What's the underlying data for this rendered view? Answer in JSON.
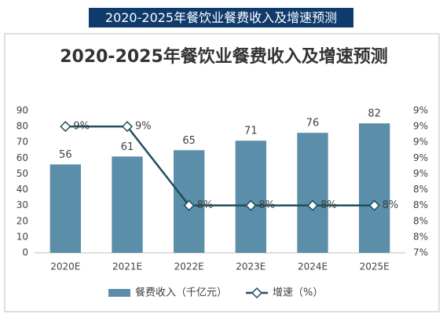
{
  "header": {
    "title": "2020-2025年餐饮业餐费收入及增速预测"
  },
  "chart_data": {
    "type": "bar-line",
    "title": "2020-2025年餐饮业餐费收入及增速预测",
    "categories": [
      "2020E",
      "2021E",
      "2022E",
      "2023E",
      "2024E",
      "2025E"
    ],
    "series": [
      {
        "name": "餐费收入（千亿元）",
        "type": "bar",
        "color": "#5b8ea8",
        "values": [
          56,
          61,
          65,
          71,
          76,
          82
        ]
      },
      {
        "name": "增速（%）",
        "type": "line",
        "axis": "y2",
        "color": "#1f4e5f",
        "values": [
          9.18,
          9.18,
          8.08,
          8.08,
          8.08,
          8.08
        ],
        "value_labels": [
          "9%",
          "9%",
          "8%",
          "8%",
          "8%",
          "8%"
        ]
      }
    ],
    "ylim": [
      0,
      90
    ],
    "yticks": [
      0,
      10,
      20,
      30,
      40,
      50,
      60,
      70,
      80,
      90
    ],
    "y2lim": [
      7.42,
      9.4
    ],
    "y2ticks": [
      {
        "value": 7.42,
        "label": "7%"
      },
      {
        "value": 7.64,
        "label": "8%"
      },
      {
        "value": 7.86,
        "label": "8%"
      },
      {
        "value": 8.08,
        "label": "8%"
      },
      {
        "value": 8.3,
        "label": "8%"
      },
      {
        "value": 8.52,
        "label": "9%"
      },
      {
        "value": 8.74,
        "label": "9%"
      },
      {
        "value": 8.96,
        "label": "9%"
      },
      {
        "value": 9.18,
        "label": "9%"
      },
      {
        "value": 9.4,
        "label": "9%"
      }
    ],
    "grid": false
  }
}
